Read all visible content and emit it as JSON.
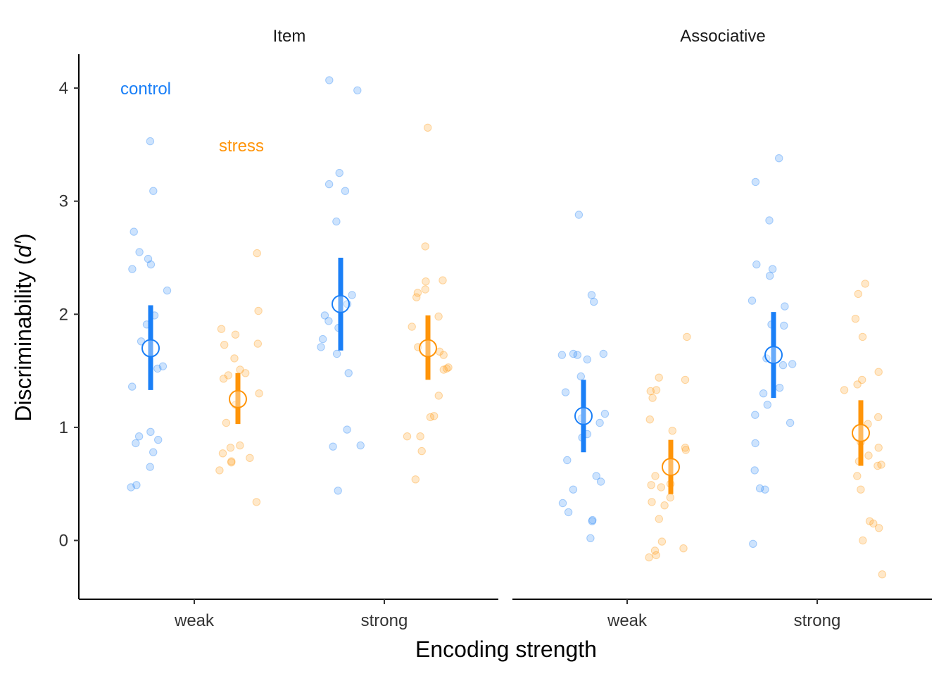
{
  "chart_data": {
    "type": "scatter",
    "xlabel": "Encoding strength",
    "ylabel_prefix": "Discriminability (",
    "ylabel_italic": "d′",
    "ylabel_suffix": ")",
    "ylim": [
      -0.5,
      4.25
    ],
    "yticks": [
      "0",
      "1",
      "2",
      "3",
      "4"
    ],
    "categories": [
      "weak",
      "strong"
    ],
    "legend": {
      "placement": "inside top-left of first panel",
      "items": [
        {
          "name": "control",
          "color": "#1a7ff7"
        },
        {
          "name": "stress",
          "color": "#ff9408"
        }
      ]
    },
    "series_colors": {
      "control": "#1a7ff7",
      "stress": "#ff9408"
    },
    "grid": false,
    "panels": [
      {
        "title": "Item",
        "groups": [
          {
            "category": "weak",
            "series": "control",
            "mean": 1.7,
            "ci": [
              1.33,
              2.08
            ],
            "points": [
              3.53,
              3.09,
              2.73,
              2.55,
              2.49,
              2.44,
              2.4,
              2.21,
              1.99,
              1.91,
              1.76,
              1.54,
              1.52,
              1.36,
              0.96,
              0.92,
              0.89,
              0.86,
              0.78,
              0.65,
              0.49,
              0.47
            ]
          },
          {
            "category": "weak",
            "series": "stress",
            "mean": 1.25,
            "ci": [
              1.03,
              1.48
            ],
            "points": [
              2.54,
              2.03,
              1.87,
              1.82,
              1.74,
              1.73,
              1.61,
              1.51,
              1.48,
              1.46,
              1.43,
              1.3,
              1.2,
              1.04,
              0.84,
              0.82,
              0.77,
              0.73,
              0.7,
              0.69,
              0.62,
              0.34
            ]
          },
          {
            "category": "strong",
            "series": "control",
            "mean": 2.09,
            "ci": [
              1.68,
              2.5
            ],
            "points": [
              4.07,
              3.98,
              3.25,
              3.15,
              3.09,
              2.82,
              2.17,
              2.09,
              1.99,
              1.94,
              1.88,
              1.78,
              1.71,
              1.65,
              1.48,
              0.98,
              0.84,
              0.83,
              0.44
            ]
          },
          {
            "category": "strong",
            "series": "stress",
            "mean": 1.7,
            "ci": [
              1.42,
              1.99
            ],
            "points": [
              3.65,
              2.6,
              2.3,
              2.29,
              2.22,
              2.19,
              2.15,
              1.98,
              1.89,
              1.71,
              1.67,
              1.64,
              1.53,
              1.52,
              1.51,
              1.28,
              1.1,
              1.09,
              0.92,
              0.92,
              0.79,
              0.54
            ]
          }
        ]
      },
      {
        "title": "Associative",
        "groups": [
          {
            "category": "weak",
            "series": "control",
            "mean": 1.1,
            "ci": [
              0.78,
              1.42
            ],
            "points": [
              2.88,
              2.17,
              2.11,
              1.65,
              1.65,
              1.64,
              1.64,
              1.6,
              1.45,
              1.31,
              1.12,
              1.08,
              1.04,
              0.94,
              0.91,
              0.71,
              0.57,
              0.52,
              0.45,
              0.33,
              0.25,
              0.18,
              0.17,
              0.02
            ]
          },
          {
            "category": "weak",
            "series": "stress",
            "mean": 0.65,
            "ci": [
              0.41,
              0.89
            ],
            "points": [
              1.8,
              1.44,
              1.42,
              1.33,
              1.32,
              1.26,
              1.07,
              0.97,
              0.82,
              0.8,
              0.57,
              0.5,
              0.49,
              0.47,
              0.38,
              0.34,
              0.31,
              0.19,
              -0.01,
              -0.07,
              -0.09,
              -0.13,
              -0.15
            ]
          },
          {
            "category": "strong",
            "series": "control",
            "mean": 1.64,
            "ci": [
              1.26,
              2.02
            ],
            "points": [
              3.38,
              3.17,
              2.83,
              2.44,
              2.4,
              2.34,
              2.12,
              2.07,
              1.91,
              1.9,
              1.61,
              1.56,
              1.55,
              1.35,
              1.3,
              1.2,
              1.11,
              1.04,
              0.86,
              0.62,
              0.46,
              0.45,
              -0.03
            ]
          },
          {
            "category": "strong",
            "series": "stress",
            "mean": 0.95,
            "ci": [
              0.66,
              1.24
            ],
            "points": [
              2.27,
              2.18,
              1.96,
              1.8,
              1.49,
              1.42,
              1.38,
              1.33,
              1.09,
              1.03,
              0.87,
              0.82,
              0.75,
              0.7,
              0.67,
              0.66,
              0.57,
              0.45,
              0.17,
              0.15,
              0.11,
              0.0,
              -0.3
            ]
          }
        ]
      }
    ]
  }
}
